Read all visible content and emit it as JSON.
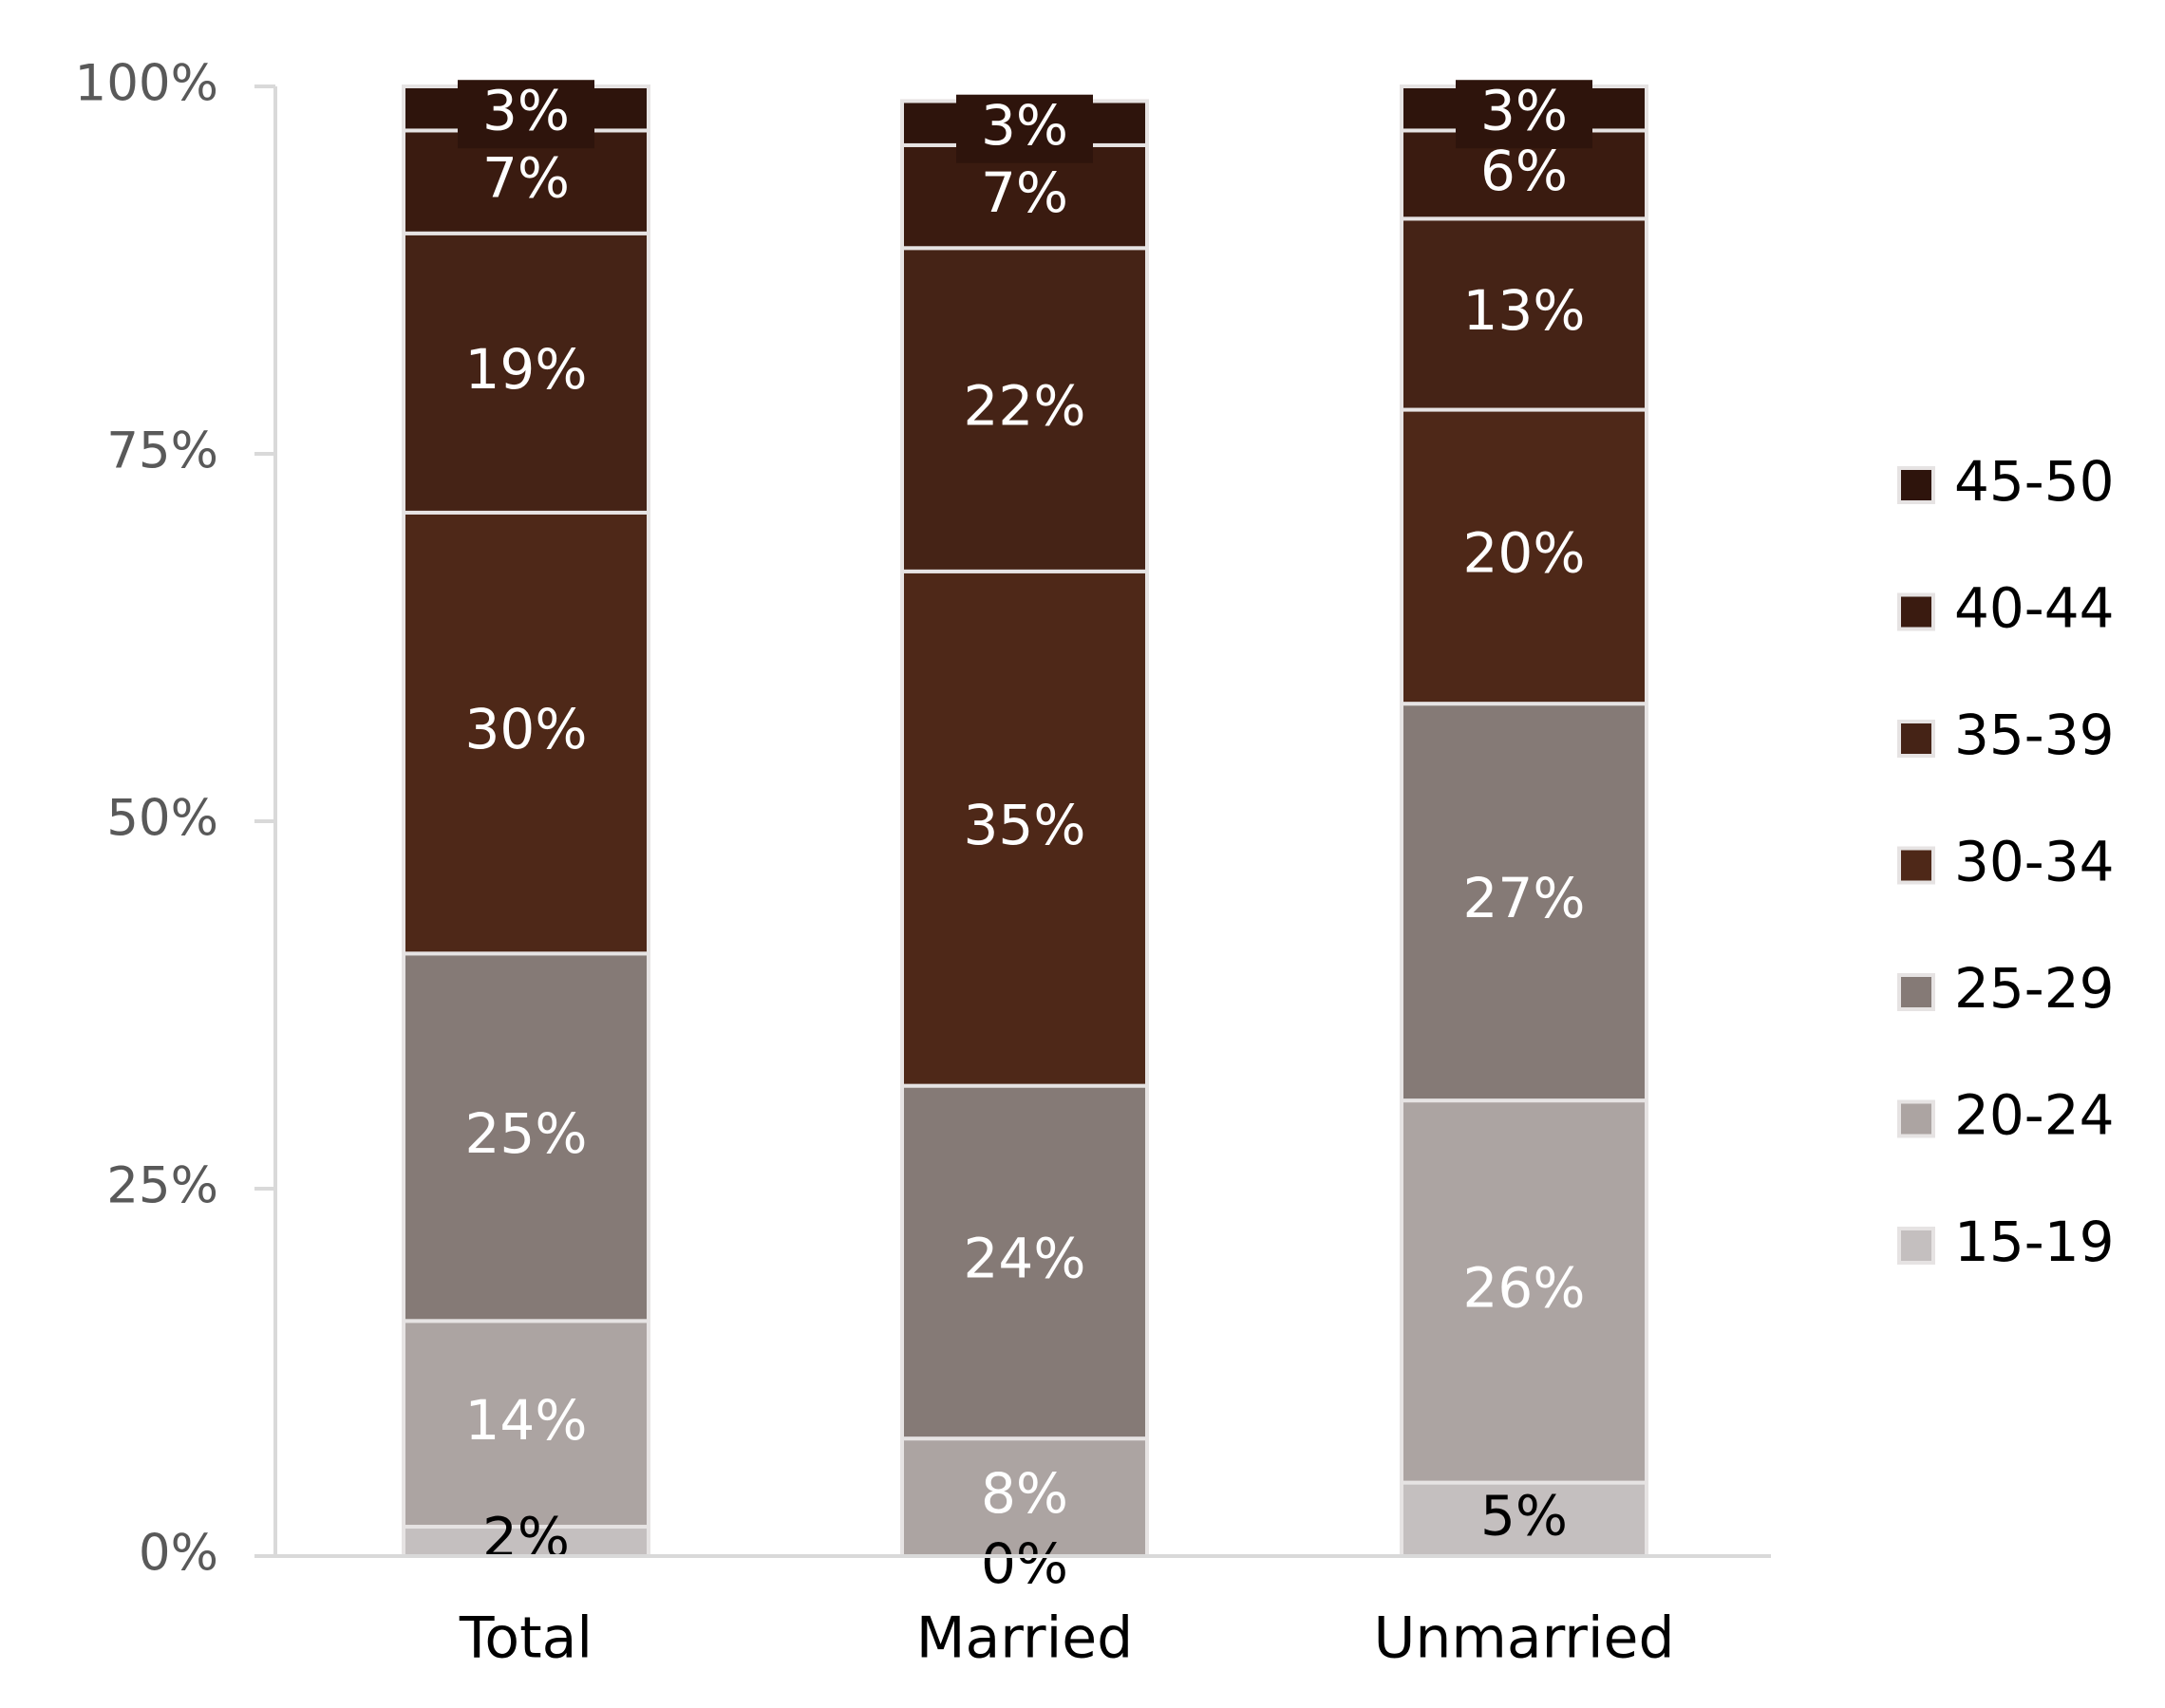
{
  "chart_data": {
    "type": "stacked_bar",
    "categories": [
      "Total",
      "Married",
      "Unmarried"
    ],
    "series": [
      {
        "name": "15-19",
        "color": "#c4bfbf",
        "values": [
          2,
          0,
          5
        ],
        "value_labels": [
          "2%",
          "0%",
          "5%"
        ]
      },
      {
        "name": "20-24",
        "color": "#aca4a2",
        "values": [
          14,
          8,
          26
        ],
        "value_labels": [
          "14%",
          "8%",
          "26%"
        ]
      },
      {
        "name": "25-29",
        "color": "#857a76",
        "values": [
          25,
          24,
          27
        ],
        "value_labels": [
          "25%",
          "24%",
          "27%"
        ]
      },
      {
        "name": "30-34",
        "color": "#4e2818",
        "values": [
          30,
          35,
          20
        ],
        "value_labels": [
          "30%",
          "35%",
          "20%"
        ]
      },
      {
        "name": "35-39",
        "color": "#452316",
        "values": [
          19,
          22,
          13
        ],
        "value_labels": [
          "19%",
          "22%",
          "13%"
        ]
      },
      {
        "name": "40-44",
        "color": "#3a1b10",
        "values": [
          7,
          7,
          6
        ],
        "value_labels": [
          "7%",
          "7%",
          "6%"
        ]
      },
      {
        "name": "45-50",
        "color": "#2e140c",
        "values": [
          3,
          3,
          3
        ],
        "value_labels": [
          "3%",
          "3%",
          "3%"
        ]
      }
    ],
    "ylim": [
      0,
      100
    ],
    "yticks": [
      {
        "value": 0,
        "label": "0%"
      },
      {
        "value": 25,
        "label": "25%"
      },
      {
        "value": 50,
        "label": "50%"
      },
      {
        "value": 75,
        "label": "75%"
      },
      {
        "value": 100,
        "label": "100%"
      }
    ],
    "grid": false,
    "legend": "right"
  }
}
